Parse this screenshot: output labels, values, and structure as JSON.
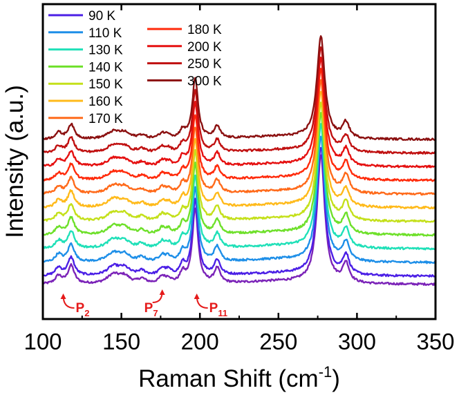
{
  "chart_data": {
    "type": "line",
    "title": "",
    "xlabel_main": "Raman Shift (cm",
    "xlabel_sup": "-1",
    "xlabel_close": ")",
    "ylabel": "Intensity (a.u.)",
    "xlim": [
      100,
      350
    ],
    "xticks": [
      100,
      150,
      200,
      250,
      300,
      350
    ],
    "xtick_labels": [
      "100",
      "150",
      "200",
      "250",
      "300",
      "350"
    ],
    "yticks_shown": false,
    "legend_position": "top-left",
    "offset_step": 0.6,
    "series": [
      {
        "name": "90 K",
        "color": "#4b1fe6",
        "offset": 0
      },
      {
        "name": "110 K",
        "color": "#1e8fe8",
        "offset": 1
      },
      {
        "name": "130 K",
        "color": "#1fe0b8",
        "offset": 2
      },
      {
        "name": "140 K",
        "color": "#6ee02a",
        "offset": 3
      },
      {
        "name": "150 K",
        "color": "#c4e01a",
        "offset": 4
      },
      {
        "name": "160 K",
        "color": "#ffba1a",
        "offset": 5
      },
      {
        "name": "170 K",
        "color": "#ff6a1a",
        "offset": 6
      },
      {
        "name": "180 K",
        "color": "#ff2a0a",
        "offset": 7
      },
      {
        "name": "200 K",
        "color": "#e51010",
        "offset": 8
      },
      {
        "name": "250 K",
        "color": "#c01010",
        "offset": 9
      },
      {
        "name": "300 K",
        "color": "#8b1010",
        "offset": 10
      }
    ],
    "extra_trace": {
      "name": "",
      "color": "#7b23b8",
      "offset": -0.6
    },
    "peaks": [
      {
        "x": 110,
        "amp": 0.35,
        "w": 2.5
      },
      {
        "x": 118,
        "amp": 0.8,
        "w": 2.5
      },
      {
        "x": 145,
        "amp": 0.4,
        "w": 5
      },
      {
        "x": 152,
        "amp": 0.3,
        "w": 4
      },
      {
        "x": 163,
        "amp": 0.2,
        "w": 3
      },
      {
        "x": 176,
        "amp": 0.3,
        "w": 2.5
      },
      {
        "x": 180,
        "amp": 0.2,
        "w": 2
      },
      {
        "x": 189,
        "amp": 0.45,
        "w": 2
      },
      {
        "x": 197,
        "amp": 3.3,
        "w": 2.2
      },
      {
        "x": 211,
        "amp": 0.65,
        "w": 2.3
      },
      {
        "x": 277,
        "amp": 5.6,
        "w": 3.0
      },
      {
        "x": 293,
        "amp": 0.85,
        "w": 2.5
      }
    ],
    "annotations": [
      {
        "label": "P",
        "sub": "2",
        "x": 113,
        "color": "#e51a1a"
      },
      {
        "label": "P",
        "sub": "7",
        "x": 176,
        "color": "#e51a1a"
      },
      {
        "label": "P",
        "sub": "11",
        "x": 198,
        "color": "#e51a1a"
      }
    ]
  }
}
